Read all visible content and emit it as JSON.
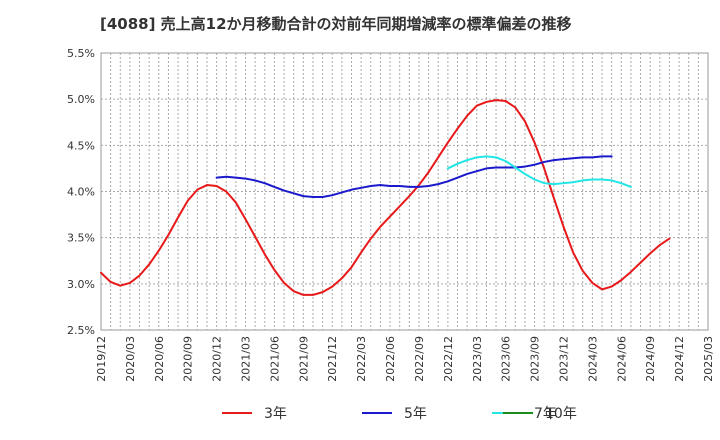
{
  "chart_data": {
    "type": "line",
    "title": "[4088]  売上高12か月移動合計の対前年同期増減率の標準偏差の推移",
    "xlabel": "",
    "ylabel": "",
    "ylim": [
      0.025,
      0.055
    ],
    "yticks": [
      "5.5%",
      "5.0%",
      "4.5%",
      "4.0%",
      "3.5%",
      "3.0%",
      "2.5%"
    ],
    "ytick_values": [
      0.055,
      0.05,
      0.045,
      0.04,
      0.035,
      0.03,
      0.025
    ],
    "xticks": [
      "2019/12",
      "2020/03",
      "2020/06",
      "2020/09",
      "2020/12",
      "2021/03",
      "2021/06",
      "2021/09",
      "2021/12",
      "2022/03",
      "2022/06",
      "2022/09",
      "2022/12",
      "2023/03",
      "2023/06",
      "2023/09",
      "2023/12",
      "2024/03",
      "2024/06",
      "2024/09",
      "2024/12",
      "2025/03"
    ],
    "x_start": "2019/12",
    "grid": true,
    "legend_position": "bottom",
    "series": [
      {
        "name": "3年",
        "color": "#e8191a",
        "start": "2019/12",
        "values": [
          0.0312,
          0.0302,
          0.0298,
          0.0301,
          0.0309,
          0.0321,
          0.0336,
          0.0353,
          0.0372,
          0.039,
          0.0402,
          0.0407,
          0.0406,
          0.04,
          0.0388,
          0.037,
          0.0351,
          0.0332,
          0.0315,
          0.0301,
          0.0292,
          0.0288,
          0.0288,
          0.0291,
          0.0297,
          0.0306,
          0.0318,
          0.0334,
          0.0349,
          0.0362,
          0.0373,
          0.0384,
          0.0395,
          0.0407,
          0.0421,
          0.0437,
          0.0453,
          0.0468,
          0.0482,
          0.0493,
          0.0497,
          0.0499,
          0.0498,
          0.0491,
          0.0476,
          0.0453,
          0.0425,
          0.0393,
          0.0362,
          0.0334,
          0.0314,
          0.0301,
          0.0294,
          0.0297,
          0.0304,
          0.0313,
          0.0323,
          0.0333,
          0.0342,
          0.0349
        ]
      },
      {
        "name": "5年",
        "color": "#1a1acc",
        "start": "2020/12",
        "values": [
          0.0415,
          0.0416,
          0.0415,
          0.0414,
          0.0412,
          0.0409,
          0.0405,
          0.0401,
          0.0398,
          0.0395,
          0.0394,
          0.0394,
          0.0396,
          0.0399,
          0.0402,
          0.0404,
          0.0406,
          0.0407,
          0.0406,
          0.0406,
          0.0405,
          0.0405,
          0.0406,
          0.0408,
          0.0411,
          0.0415,
          0.0419,
          0.0422,
          0.0425,
          0.0426,
          0.0426,
          0.0426,
          0.0427,
          0.0429,
          0.0432,
          0.0434,
          0.0435,
          0.0436,
          0.0437,
          0.0437,
          0.0438,
          0.0438
        ]
      },
      {
        "name": "7年",
        "color": "#22e5e5",
        "start": "2022/12",
        "values": [
          0.0425,
          0.043,
          0.0434,
          0.0437,
          0.0438,
          0.0437,
          0.0433,
          0.0426,
          0.0419,
          0.0413,
          0.0409,
          0.0408,
          0.0409,
          0.041,
          0.0412,
          0.0413,
          0.0413,
          0.0412,
          0.0409,
          0.0405
        ]
      },
      {
        "name": "10年",
        "color": "#1a8c1a",
        "start": "2024/12",
        "values": []
      }
    ]
  }
}
